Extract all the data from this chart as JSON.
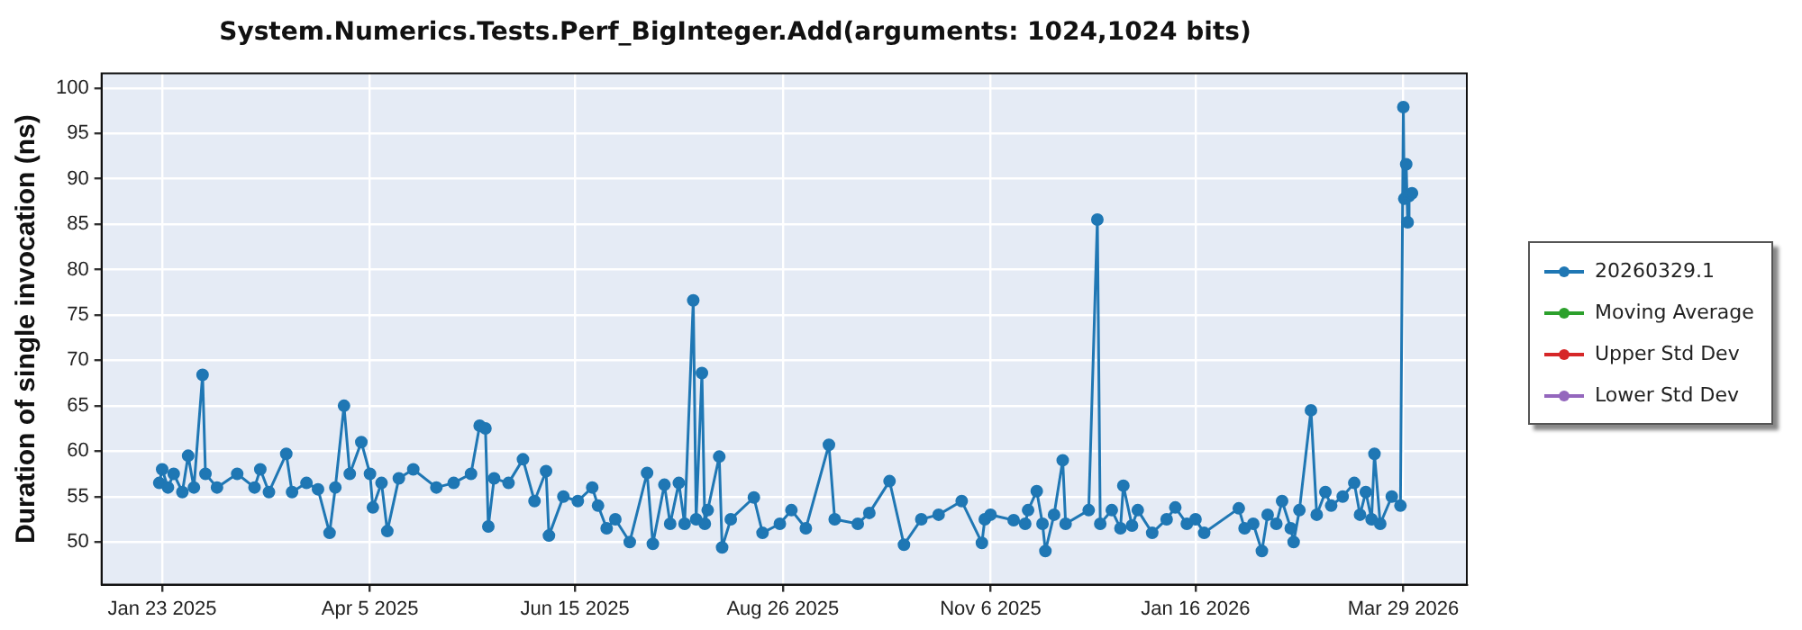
{
  "chart_data": {
    "type": "line",
    "title": "System.Numerics.Tests.Perf_BigInteger.Add(arguments: 1024,1024 bits)",
    "ylabel": "Duration of single invocation (ns)",
    "xlim": [
      "2025-01-02",
      "2026-04-20"
    ],
    "xticks": [
      {
        "value": "2025-01-23",
        "label": "Jan 23 2025"
      },
      {
        "value": "2025-04-05",
        "label": "Apr 5 2025"
      },
      {
        "value": "2025-06-15",
        "label": "Jun 15 2025"
      },
      {
        "value": "2025-08-26",
        "label": "Aug 26 2025"
      },
      {
        "value": "2025-11-06",
        "label": "Nov 6 2025"
      },
      {
        "value": "2026-01-16",
        "label": "Jan 16 2026"
      },
      {
        "value": "2026-03-29",
        "label": "Mar 29 2026"
      }
    ],
    "ylim": [
      45.3,
      101.6
    ],
    "yticks": [
      50,
      55,
      60,
      65,
      70,
      75,
      80,
      85,
      90,
      95,
      100
    ],
    "grid": true,
    "legend": "right",
    "marker": "circle",
    "line_style": "solid",
    "series": [
      {
        "name": "20260329.1",
        "color": "#1f77b4",
        "x": [
          "2025-01-22",
          "2025-01-23",
          "2025-01-25",
          "2025-01-27",
          "2025-01-30",
          "2025-02-01",
          "2025-02-03",
          "2025-02-06",
          "2025-02-07",
          "2025-02-11",
          "2025-02-18",
          "2025-02-24",
          "2025-02-26",
          "2025-03-01",
          "2025-03-07",
          "2025-03-09",
          "2025-03-14",
          "2025-03-18",
          "2025-03-22",
          "2025-03-24",
          "2025-03-27",
          "2025-03-29",
          "2025-04-02",
          "2025-04-05",
          "2025-04-06",
          "2025-04-09",
          "2025-04-11",
          "2025-04-15",
          "2025-04-20",
          "2025-04-28",
          "2025-05-04",
          "2025-05-10",
          "2025-05-13",
          "2025-05-15",
          "2025-05-16",
          "2025-05-18",
          "2025-05-23",
          "2025-05-28",
          "2025-06-01",
          "2025-06-05",
          "2025-06-06",
          "2025-06-11",
          "2025-06-16",
          "2025-06-21",
          "2025-06-23",
          "2025-06-26",
          "2025-06-29",
          "2025-07-04",
          "2025-07-10",
          "2025-07-12",
          "2025-07-16",
          "2025-07-18",
          "2025-07-21",
          "2025-07-23",
          "2025-07-26",
          "2025-07-27",
          "2025-07-29",
          "2025-07-30",
          "2025-07-31",
          "2025-08-04",
          "2025-08-05",
          "2025-08-08",
          "2025-08-16",
          "2025-08-19",
          "2025-08-25",
          "2025-08-29",
          "2025-09-03",
          "2025-09-11",
          "2025-09-13",
          "2025-09-21",
          "2025-09-25",
          "2025-10-02",
          "2025-10-07",
          "2025-10-13",
          "2025-10-19",
          "2025-10-27",
          "2025-11-03",
          "2025-11-04",
          "2025-11-06",
          "2025-11-14",
          "2025-11-18",
          "2025-11-19",
          "2025-11-22",
          "2025-11-24",
          "2025-11-25",
          "2025-11-28",
          "2025-12-01",
          "2025-12-02",
          "2025-12-10",
          "2025-12-13",
          "2025-12-14",
          "2025-12-18",
          "2025-12-21",
          "2025-12-22",
          "2025-12-25",
          "2025-12-27",
          "2026-01-01",
          "2026-01-06",
          "2026-01-09",
          "2026-01-13",
          "2026-01-16",
          "2026-01-19",
          "2026-01-31",
          "2026-02-02",
          "2026-02-05",
          "2026-02-08",
          "2026-02-10",
          "2026-02-13",
          "2026-02-15",
          "2026-02-18",
          "2026-02-19",
          "2026-02-21",
          "2026-02-25",
          "2026-02-27",
          "2026-03-02",
          "2026-03-04",
          "2026-03-08",
          "2026-03-12",
          "2026-03-14",
          "2026-03-16",
          "2026-03-18",
          "2026-03-19",
          "2026-03-21",
          "2026-03-25",
          "2026-03-28",
          "2026-03-29",
          "2026-03-29T08:00",
          "2026-03-30",
          "2026-03-30T12:00",
          "2026-03-31",
          "2026-04-01"
        ],
        "values": [
          56.5,
          58,
          56,
          57.5,
          55.5,
          59.5,
          56,
          68.4,
          57.5,
          56,
          57.5,
          56,
          58,
          55.5,
          59.7,
          55.5,
          56.5,
          55.8,
          51,
          56,
          65,
          57.5,
          61,
          57.5,
          53.8,
          56.5,
          51.2,
          57,
          58,
          56,
          56.5,
          57.5,
          62.8,
          62.5,
          51.7,
          57,
          56.5,
          59.1,
          54.5,
          57.8,
          50.7,
          55,
          54.5,
          56,
          54,
          51.5,
          52.5,
          50,
          57.6,
          49.8,
          56.3,
          52,
          56.5,
          52,
          76.6,
          52.5,
          68.6,
          52,
          53.5,
          59.4,
          49.4,
          52.5,
          54.9,
          51,
          52,
          53.5,
          51.5,
          60.7,
          52.5,
          52,
          53.2,
          56.7,
          49.7,
          52.5,
          53,
          54.5,
          49.9,
          52.5,
          53,
          52.4,
          52,
          53.5,
          55.6,
          52,
          49,
          53,
          59,
          52,
          53.5,
          85.5,
          52,
          53.5,
          51.5,
          56.2,
          51.8,
          53.5,
          51,
          52.5,
          53.8,
          52,
          52.5,
          51,
          53.7,
          51.5,
          52,
          49,
          53,
          52,
          54.5,
          51.5,
          50,
          53.5,
          64.5,
          53,
          55.5,
          54,
          55,
          56.5,
          53,
          55.5,
          52.5,
          59.7,
          52,
          55,
          54,
          97.9,
          87.8,
          91.6,
          85.2,
          88.1,
          88.4
        ]
      },
      {
        "name": "Moving Average",
        "color": "#2ca02c"
      },
      {
        "name": "Upper Std Dev",
        "color": "#d62728"
      },
      {
        "name": "Lower Std Dev",
        "color": "#9467bd"
      }
    ]
  }
}
